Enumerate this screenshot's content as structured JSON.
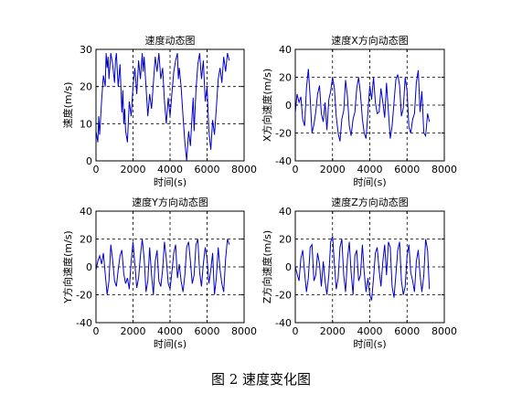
{
  "caption": "图 2  速度变化图",
  "chart_data": [
    {
      "type": "line",
      "title": "速度动态图",
      "xlabel": "时间(s)",
      "ylabel": "速度(m/s)",
      "xlim": [
        0,
        8000
      ],
      "ylim": [
        0,
        30
      ],
      "xticks": [
        0,
        2000,
        4000,
        6000,
        8000
      ],
      "yticks": [
        0,
        10,
        20,
        30
      ],
      "grid": true,
      "grid_style": "dashed",
      "series": [
        {
          "color": "#0000cc",
          "x": [
            0,
            100,
            150,
            200,
            300,
            400,
            500,
            550,
            600,
            650,
            700,
            800,
            900,
            1000,
            1050,
            1100,
            1200,
            1300,
            1400,
            1450,
            1500,
            1550,
            1600,
            1700,
            1800,
            1900,
            2000,
            2100,
            2200,
            2300,
            2400,
            2500,
            2550,
            2600,
            2700,
            2800,
            2900,
            3000,
            3100,
            3200,
            3300,
            3400,
            3500,
            3600,
            3700,
            3800,
            3900,
            4000,
            4100,
            4200,
            4300,
            4400,
            4450,
            4500,
            4600,
            4700,
            4800,
            4900,
            5000,
            5100,
            5200,
            5250,
            5300,
            5400,
            5500,
            5600,
            5700,
            5800,
            5900,
            6000,
            6100,
            6200,
            6300,
            6400,
            6500,
            6600,
            6700,
            6800,
            6900,
            7000,
            7100,
            7200
          ],
          "y": [
            8,
            5,
            12,
            7,
            16,
            23,
            20,
            29,
            25,
            28,
            22,
            29,
            26,
            21,
            27,
            29,
            20,
            26,
            13,
            19,
            10,
            14,
            8,
            5,
            16,
            12,
            20,
            25,
            18,
            27,
            22,
            29,
            24,
            28,
            20,
            12,
            18,
            14,
            21,
            28,
            24,
            29,
            22,
            25,
            16,
            10,
            17,
            12,
            18,
            24,
            27,
            29,
            22,
            25,
            20,
            12,
            5,
            0,
            8,
            4,
            13,
            17,
            8,
            19,
            26,
            29,
            22,
            27,
            16,
            20,
            8,
            3,
            11,
            7,
            14,
            22,
            25,
            21,
            28,
            24,
            29,
            27
          ]
        }
      ]
    },
    {
      "type": "line",
      "title": "速度X方向动态图",
      "xlabel": "时间(s)",
      "ylabel": "X方向速度(m/s)",
      "xlim": [
        0,
        8000
      ],
      "ylim": [
        -40,
        40
      ],
      "xticks": [
        0,
        2000,
        4000,
        6000,
        8000
      ],
      "yticks": [
        -40,
        -20,
        0,
        20,
        40
      ],
      "grid": true,
      "grid_style": "dashed",
      "series": [
        {
          "color": "#0000cc",
          "x": [
            0,
            100,
            200,
            300,
            400,
            500,
            600,
            700,
            800,
            900,
            1000,
            1100,
            1200,
            1300,
            1400,
            1500,
            1600,
            1700,
            1800,
            1900,
            2000,
            2100,
            2200,
            2300,
            2400,
            2500,
            2600,
            2700,
            2800,
            2900,
            3000,
            3100,
            3200,
            3300,
            3400,
            3500,
            3600,
            3700,
            3800,
            3900,
            4000,
            4100,
            4200,
            4300,
            4400,
            4500,
            4600,
            4700,
            4800,
            4900,
            5000,
            5100,
            5200,
            5300,
            5400,
            5500,
            5600,
            5700,
            5800,
            5900,
            6000,
            6100,
            6200,
            6300,
            6400,
            6500,
            6600,
            6700,
            6800,
            6900,
            7000,
            7100,
            7200
          ],
          "y": [
            -5,
            8,
            2,
            6,
            -10,
            -15,
            12,
            26,
            5,
            -20,
            -14,
            -5,
            8,
            14,
            -6,
            -12,
            2,
            -18,
            4,
            10,
            20,
            12,
            -8,
            -20,
            -26,
            -10,
            -4,
            18,
            6,
            -15,
            -22,
            -10,
            -5,
            12,
            20,
            8,
            -10,
            -20,
            -24,
            -5,
            14,
            4,
            20,
            2,
            -6,
            -5,
            12,
            2,
            -9,
            16,
            -5,
            -24,
            -15,
            2,
            18,
            22,
            14,
            -8,
            -2,
            20,
            10,
            -16,
            -20,
            -10,
            -6,
            16,
            25,
            -5,
            10,
            -20,
            -22,
            -6,
            -12
          ]
        }
      ]
    },
    {
      "type": "line",
      "title": "速度Y方向动态图",
      "xlabel": "时间(s)",
      "ylabel": "Y方向速度(m/s)",
      "xlim": [
        0,
        8000
      ],
      "ylim": [
        -40,
        40
      ],
      "xticks": [
        0,
        2000,
        4000,
        6000,
        8000
      ],
      "yticks": [
        -40,
        -20,
        0,
        20,
        40
      ],
      "grid": true,
      "grid_style": "dashed",
      "series": [
        {
          "color": "#0000cc",
          "x": [
            0,
            100,
            200,
            300,
            400,
            500,
            600,
            700,
            800,
            900,
            1000,
            1100,
            1200,
            1300,
            1400,
            1500,
            1600,
            1700,
            1800,
            1900,
            2000,
            2100,
            2200,
            2300,
            2400,
            2500,
            2600,
            2700,
            2800,
            2900,
            3000,
            3100,
            3200,
            3300,
            3400,
            3500,
            3600,
            3700,
            3800,
            3900,
            4000,
            4100,
            4200,
            4300,
            4400,
            4500,
            4600,
            4700,
            4800,
            4900,
            5000,
            5100,
            5200,
            5300,
            5400,
            5500,
            5600,
            5700,
            5800,
            5900,
            6000,
            6100,
            6200,
            6300,
            6400,
            6500,
            6600,
            6700,
            6800,
            6900,
            7000,
            7100,
            7200
          ],
          "y": [
            -2,
            4,
            8,
            2,
            10,
            -5,
            -20,
            -10,
            16,
            5,
            -10,
            -14,
            -2,
            8,
            12,
            -5,
            -12,
            -8,
            -16,
            4,
            18,
            2,
            -15,
            -8,
            8,
            20,
            6,
            -18,
            -10,
            14,
            -6,
            -20,
            4,
            12,
            -10,
            -14,
            -2,
            18,
            6,
            -12,
            -16,
            -4,
            10,
            16,
            -8,
            2,
            -10,
            -18,
            -6,
            14,
            18,
            4,
            -12,
            -6,
            16,
            20,
            -4,
            -14,
            2,
            14,
            6,
            -12,
            -2,
            10,
            -20,
            -8,
            14,
            -2,
            -12,
            -18,
            6,
            20,
            16
          ]
        }
      ]
    },
    {
      "type": "line",
      "title": "速度Z方向动态图",
      "xlabel": "时间(s)",
      "ylabel": "Z方向速度(m/s)",
      "xlim": [
        0,
        8000
      ],
      "ylim": [
        -40,
        40
      ],
      "xticks": [
        0,
        2000,
        4000,
        6000,
        8000
      ],
      "yticks": [
        -40,
        -20,
        0,
        20,
        40
      ],
      "grid": true,
      "grid_style": "dashed",
      "series": [
        {
          "color": "#0000cc",
          "x": [
            0,
            100,
            200,
            300,
            400,
            500,
            600,
            700,
            800,
            900,
            1000,
            1100,
            1200,
            1300,
            1400,
            1500,
            1600,
            1700,
            1800,
            1900,
            2000,
            2100,
            2200,
            2300,
            2400,
            2500,
            2600,
            2700,
            2800,
            2900,
            3000,
            3100,
            3200,
            3300,
            3400,
            3500,
            3600,
            3700,
            3800,
            3900,
            4000,
            4100,
            4200,
            4300,
            4400,
            4500,
            4600,
            4700,
            4800,
            4900,
            5000,
            5100,
            5200,
            5300,
            5400,
            5500,
            5600,
            5700,
            5800,
            5900,
            6000,
            6100,
            6200,
            6300,
            6400,
            6500,
            6600,
            6700,
            6800,
            6900,
            7000,
            7100,
            7200
          ],
          "y": [
            0,
            -5,
            -10,
            6,
            12,
            -4,
            -18,
            -8,
            14,
            16,
            -10,
            -6,
            10,
            2,
            -14,
            4,
            -10,
            -20,
            -6,
            18,
            22,
            2,
            -16,
            -8,
            14,
            20,
            -6,
            -18,
            6,
            18,
            -4,
            -20,
            8,
            12,
            -10,
            -6,
            16,
            -4,
            -18,
            -8,
            -20,
            -24,
            -8,
            10,
            14,
            -2,
            -14,
            4,
            16,
            -6,
            18,
            14,
            -14,
            -22,
            -6,
            12,
            18,
            -10,
            -20,
            -14,
            8,
            16,
            -4,
            -10,
            -18,
            4,
            12,
            -6,
            -18,
            -6,
            20,
            12,
            -16
          ]
        }
      ]
    }
  ]
}
